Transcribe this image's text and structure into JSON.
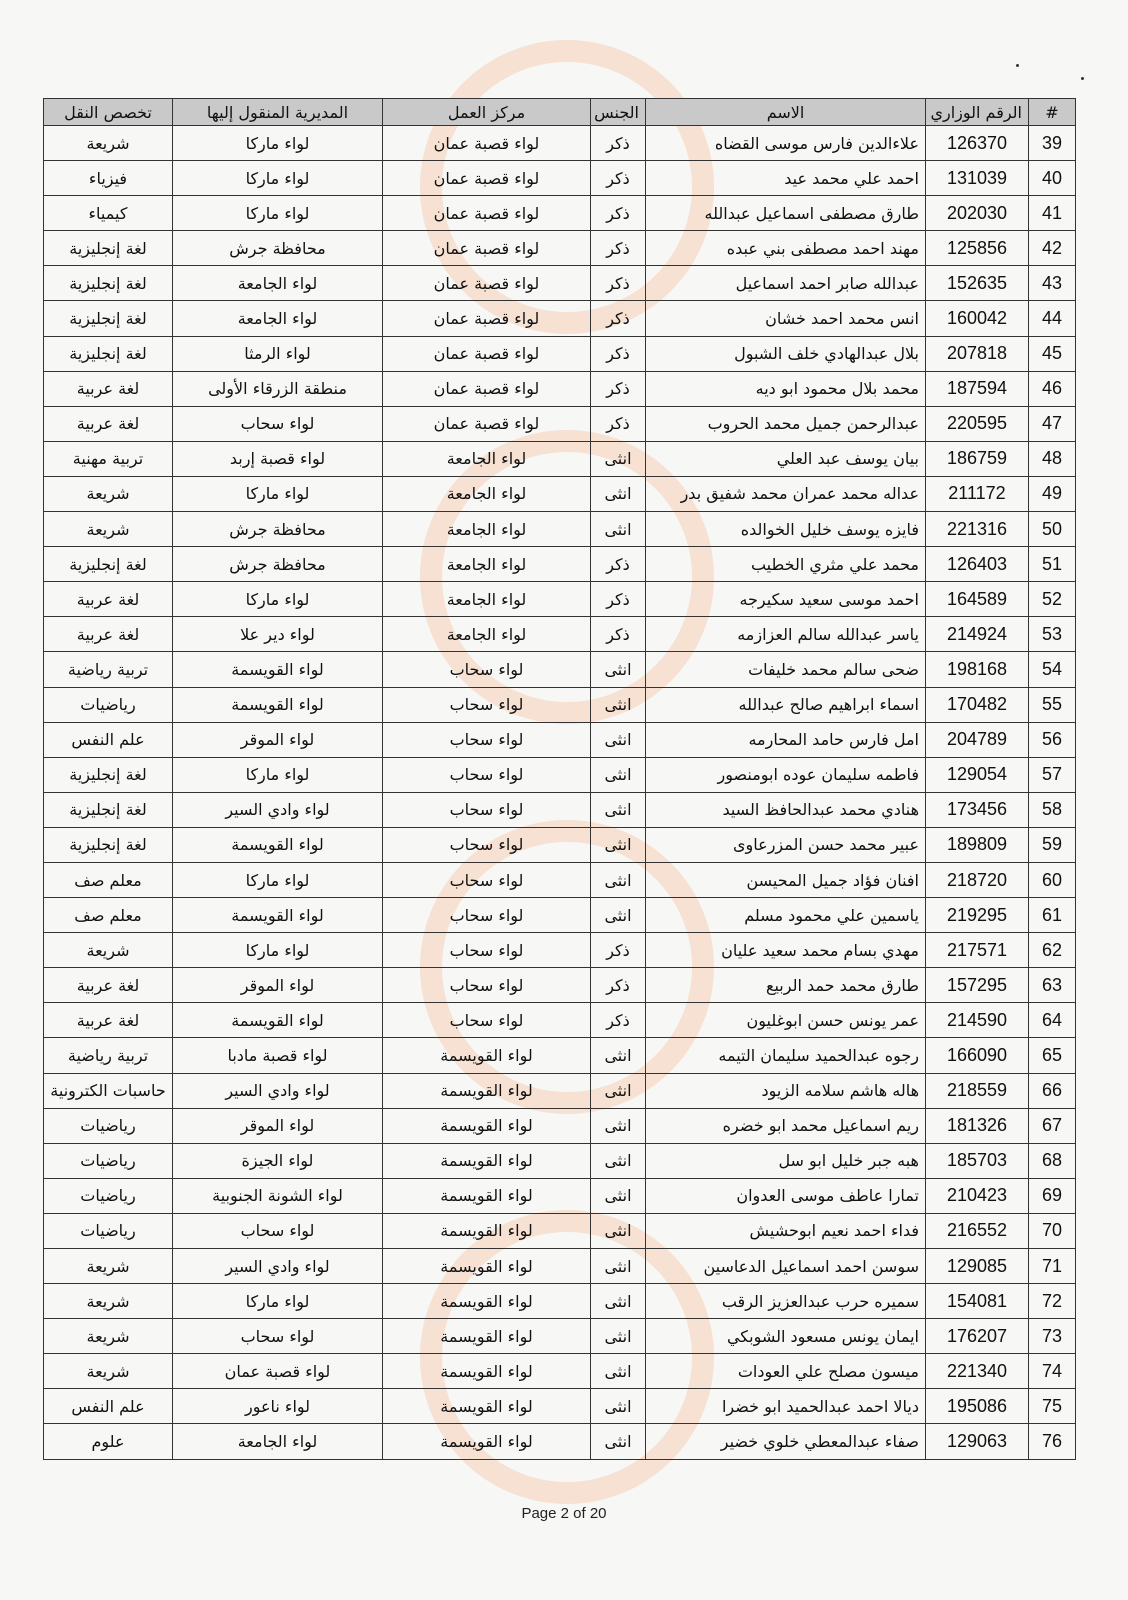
{
  "table": {
    "headers": [
      "#",
      "الرقم الوزاري",
      "الاسم",
      "الجنس",
      "مركز العمل",
      "المديرية المنقول إليها",
      "تخصص النقل"
    ],
    "rows": [
      [
        "39",
        "126370",
        "علاءالدين فارس موسى القضاه",
        "ذكر",
        "لواء قصبة عمان",
        "لواء ماركا",
        "شريعة"
      ],
      [
        "40",
        "131039",
        "احمد علي محمد عيد",
        "ذكر",
        "لواء قصبة عمان",
        "لواء ماركا",
        "فيزياء"
      ],
      [
        "41",
        "202030",
        "طارق مصطفى اسماعيل عبدالله",
        "ذكر",
        "لواء قصبة عمان",
        "لواء ماركا",
        "كيمياء"
      ],
      [
        "42",
        "125856",
        "مهند احمد مصطفى بني عبده",
        "ذكر",
        "لواء قصبة عمان",
        "محافظة جرش",
        "لغة إنجليزية"
      ],
      [
        "43",
        "152635",
        "عبدالله صابر احمد اسماعيل",
        "ذكر",
        "لواء قصبة عمان",
        "لواء الجامعة",
        "لغة إنجليزية"
      ],
      [
        "44",
        "160042",
        "انس محمد احمد خشان",
        "ذكر",
        "لواء قصبة عمان",
        "لواء الجامعة",
        "لغة إنجليزية"
      ],
      [
        "45",
        "207818",
        "بلال عبدالهادي خلف الشبول",
        "ذكر",
        "لواء قصبة عمان",
        "لواء الرمثا",
        "لغة إنجليزية"
      ],
      [
        "46",
        "187594",
        "محمد بلال محمود ابو ديه",
        "ذكر",
        "لواء قصبة عمان",
        "منطقة الزرقاء الأولى",
        "لغة عربية"
      ],
      [
        "47",
        "220595",
        "عبدالرحمن جميل محمد الحروب",
        "ذكر",
        "لواء قصبة عمان",
        "لواء سحاب",
        "لغة عربية"
      ],
      [
        "48",
        "186759",
        "بيان يوسف عبد العلي",
        "انثى",
        "لواء الجامعة",
        "لواء قصبة إربد",
        "تربية مهنية"
      ],
      [
        "49",
        "211172",
        "عداله محمد عمران محمد شفيق بدر",
        "انثى",
        "لواء الجامعة",
        "لواء ماركا",
        "شريعة"
      ],
      [
        "50",
        "221316",
        "فايزه يوسف خليل الخوالده",
        "انثى",
        "لواء الجامعة",
        "محافظة جرش",
        "شريعة"
      ],
      [
        "51",
        "126403",
        "محمد علي مثري الخطيب",
        "ذكر",
        "لواء الجامعة",
        "محافظة جرش",
        "لغة إنجليزية"
      ],
      [
        "52",
        "164589",
        "احمد موسى سعيد سكيرجه",
        "ذكر",
        "لواء الجامعة",
        "لواء ماركا",
        "لغة عربية"
      ],
      [
        "53",
        "214924",
        "ياسر عبدالله سالم العزازمه",
        "ذكر",
        "لواء الجامعة",
        "لواء دير علا",
        "لغة عربية"
      ],
      [
        "54",
        "198168",
        "ضحى سالم محمد خليفات",
        "انثى",
        "لواء سحاب",
        "لواء القويسمة",
        "تربية رياضية"
      ],
      [
        "55",
        "170482",
        "اسماء ابراهيم صالح عبدالله",
        "انثى",
        "لواء سحاب",
        "لواء القويسمة",
        "رياضيات"
      ],
      [
        "56",
        "204789",
        "امل فارس حامد المحارمه",
        "انثى",
        "لواء سحاب",
        "لواء الموقر",
        "علم النفس"
      ],
      [
        "57",
        "129054",
        "فاطمه سليمان عوده ابومنصور",
        "انثى",
        "لواء سحاب",
        "لواء ماركا",
        "لغة إنجليزية"
      ],
      [
        "58",
        "173456",
        "هنادي محمد عبدالحافظ السيد",
        "انثى",
        "لواء سحاب",
        "لواء وادي السير",
        "لغة إنجليزية"
      ],
      [
        "59",
        "189809",
        "عبير محمد حسن المزرعاوى",
        "انثى",
        "لواء سحاب",
        "لواء القويسمة",
        "لغة إنجليزية"
      ],
      [
        "60",
        "218720",
        "افنان فؤاد جميل المحيسن",
        "انثى",
        "لواء سحاب",
        "لواء ماركا",
        "معلم صف"
      ],
      [
        "61",
        "219295",
        "ياسمين علي محمود مسلم",
        "انثى",
        "لواء سحاب",
        "لواء القويسمة",
        "معلم صف"
      ],
      [
        "62",
        "217571",
        "مهدي بسام محمد سعيد عليان",
        "ذكر",
        "لواء سحاب",
        "لواء ماركا",
        "شريعة"
      ],
      [
        "63",
        "157295",
        "طارق محمد حمد الربيع",
        "ذكر",
        "لواء سحاب",
        "لواء الموقر",
        "لغة عربية"
      ],
      [
        "64",
        "214590",
        "عمر يونس حسن ابوغليون",
        "ذكر",
        "لواء سحاب",
        "لواء القويسمة",
        "لغة عربية"
      ],
      [
        "65",
        "166090",
        "رجوه عبدالحميد سليمان التيمه",
        "انثى",
        "لواء القويسمة",
        "لواء قصبة مادبا",
        "تربية رياضية"
      ],
      [
        "66",
        "218559",
        "هاله هاشم سلامه الزيود",
        "انثى",
        "لواء القويسمة",
        "لواء وادي السير",
        "حاسبات الكترونية"
      ],
      [
        "67",
        "181326",
        "ريم اسماعيل محمد ابو خضره",
        "انثى",
        "لواء القويسمة",
        "لواء الموقر",
        "رياضيات"
      ],
      [
        "68",
        "185703",
        "هبه جبر خليل ابو سل",
        "انثى",
        "لواء القويسمة",
        "لواء الجيزة",
        "رياضيات"
      ],
      [
        "69",
        "210423",
        "تمارا عاطف موسى العدوان",
        "انثى",
        "لواء القويسمة",
        "لواء الشونة الجنوبية",
        "رياضيات"
      ],
      [
        "70",
        "216552",
        "فداء احمد نعيم ابوحشيش",
        "انثى",
        "لواء القويسمة",
        "لواء سحاب",
        "رياضيات"
      ],
      [
        "71",
        "129085",
        "سوسن احمد اسماعيل الدعاسين",
        "انثى",
        "لواء القويسمة",
        "لواء وادي السير",
        "شريعة"
      ],
      [
        "72",
        "154081",
        "سميره حرب عبدالعزيز الرقب",
        "انثى",
        "لواء القويسمة",
        "لواء ماركا",
        "شريعة"
      ],
      [
        "73",
        "176207",
        "ايمان يونس مسعود الشوبكي",
        "انثى",
        "لواء القويسمة",
        "لواء سحاب",
        "شريعة"
      ],
      [
        "74",
        "221340",
        "ميسون مصلح علي العودات",
        "انثى",
        "لواء القويسمة",
        "لواء قصبة عمان",
        "شريعة"
      ],
      [
        "75",
        "195086",
        "ديالا احمد عبدالحميد ابو خضرا",
        "انثى",
        "لواء القويسمة",
        "لواء ناعور",
        "علم النفس"
      ],
      [
        "76",
        "129063",
        "صفاء عبدالمعطي خلوي خضير",
        "انثى",
        "لواء القويسمة",
        "لواء الجامعة",
        "علوم"
      ]
    ]
  },
  "footer": {
    "page_label": "Page 2 of 20"
  }
}
